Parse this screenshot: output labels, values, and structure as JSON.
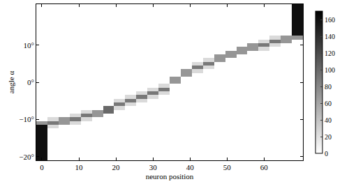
{
  "chart_data": {
    "type": "heatmap",
    "x_label": "neuron position",
    "y_label": "angle α",
    "x": [
      0,
      3,
      6,
      9,
      12,
      15,
      18,
      21,
      24,
      27,
      30,
      33,
      36,
      39,
      42,
      45,
      48,
      51,
      54,
      57,
      60,
      63,
      66,
      69
    ],
    "y": [
      -21,
      -20,
      -19,
      -18,
      -17,
      -16,
      -15,
      -14,
      -13,
      -12,
      -11,
      -10,
      -9,
      -8,
      -7,
      -6,
      -5,
      -4,
      -3,
      -2,
      -1,
      0,
      1,
      2,
      3,
      4,
      5,
      6,
      7,
      8,
      9,
      10,
      11,
      12,
      13,
      14,
      15,
      16,
      17,
      18,
      19,
      20,
      21
    ],
    "z": [
      [
        160,
        0,
        0,
        0,
        0,
        0,
        0,
        0,
        0,
        0,
        0,
        0,
        0,
        0,
        0,
        0,
        0,
        0,
        0,
        0,
        0,
        0,
        0,
        0
      ],
      [
        160,
        0,
        0,
        0,
        0,
        0,
        0,
        0,
        0,
        0,
        0,
        0,
        0,
        0,
        0,
        0,
        0,
        0,
        0,
        0,
        0,
        0,
        0,
        0
      ],
      [
        160,
        0,
        0,
        0,
        0,
        0,
        0,
        0,
        0,
        0,
        0,
        0,
        0,
        0,
        0,
        0,
        0,
        0,
        0,
        0,
        0,
        0,
        0,
        0
      ],
      [
        160,
        0,
        0,
        0,
        0,
        0,
        0,
        0,
        0,
        0,
        0,
        0,
        0,
        0,
        0,
        0,
        0,
        0,
        0,
        0,
        0,
        0,
        0,
        0
      ],
      [
        160,
        0,
        0,
        0,
        0,
        0,
        0,
        0,
        0,
        0,
        0,
        0,
        0,
        0,
        0,
        0,
        0,
        0,
        0,
        0,
        0,
        0,
        0,
        0
      ],
      [
        160,
        0,
        0,
        0,
        0,
        0,
        0,
        0,
        0,
        0,
        0,
        0,
        0,
        0,
        0,
        0,
        0,
        0,
        0,
        0,
        0,
        0,
        0,
        0
      ],
      [
        160,
        0,
        0,
        0,
        0,
        0,
        0,
        0,
        0,
        0,
        0,
        0,
        0,
        0,
        0,
        0,
        0,
        0,
        0,
        0,
        0,
        0,
        0,
        0
      ],
      [
        160,
        0,
        0,
        0,
        0,
        0,
        0,
        0,
        0,
        0,
        0,
        0,
        0,
        0,
        0,
        0,
        0,
        0,
        0,
        0,
        0,
        0,
        0,
        0
      ],
      [
        160,
        0,
        0,
        0,
        0,
        0,
        0,
        0,
        0,
        0,
        0,
        0,
        0,
        0,
        0,
        0,
        0,
        0,
        0,
        0,
        0,
        0,
        0,
        0
      ],
      [
        160,
        25,
        0,
        0,
        0,
        0,
        0,
        0,
        0,
        0,
        0,
        0,
        0,
        0,
        0,
        0,
        0,
        0,
        0,
        0,
        0,
        0,
        0,
        0
      ],
      [
        70,
        90,
        70,
        25,
        0,
        0,
        0,
        0,
        0,
        0,
        0,
        0,
        0,
        0,
        0,
        0,
        0,
        0,
        0,
        0,
        0,
        0,
        0,
        0
      ],
      [
        0,
        25,
        70,
        90,
        25,
        0,
        0,
        0,
        0,
        0,
        0,
        0,
        0,
        0,
        0,
        0,
        0,
        0,
        0,
        0,
        0,
        0,
        0,
        0
      ],
      [
        0,
        0,
        0,
        25,
        90,
        70,
        0,
        0,
        0,
        0,
        0,
        0,
        0,
        0,
        0,
        0,
        0,
        0,
        0,
        0,
        0,
        0,
        0,
        0
      ],
      [
        0,
        0,
        0,
        0,
        25,
        70,
        100,
        0,
        0,
        0,
        0,
        0,
        0,
        0,
        0,
        0,
        0,
        0,
        0,
        0,
        0,
        0,
        0,
        0
      ],
      [
        0,
        0,
        0,
        0,
        0,
        0,
        100,
        25,
        0,
        0,
        0,
        0,
        0,
        0,
        0,
        0,
        0,
        0,
        0,
        0,
        0,
        0,
        0,
        0
      ],
      [
        0,
        0,
        0,
        0,
        0,
        0,
        0,
        90,
        25,
        0,
        0,
        0,
        0,
        0,
        0,
        0,
        0,
        0,
        0,
        0,
        0,
        0,
        0,
        0
      ],
      [
        0,
        0,
        0,
        0,
        0,
        0,
        0,
        25,
        90,
        25,
        0,
        0,
        0,
        0,
        0,
        0,
        0,
        0,
        0,
        0,
        0,
        0,
        0,
        0
      ],
      [
        0,
        0,
        0,
        0,
        0,
        0,
        0,
        0,
        25,
        90,
        25,
        0,
        0,
        0,
        0,
        0,
        0,
        0,
        0,
        0,
        0,
        0,
        0,
        0
      ],
      [
        0,
        0,
        0,
        0,
        0,
        0,
        0,
        0,
        0,
        25,
        90,
        25,
        0,
        0,
        0,
        0,
        0,
        0,
        0,
        0,
        0,
        0,
        0,
        0
      ],
      [
        0,
        0,
        0,
        0,
        0,
        0,
        0,
        0,
        0,
        0,
        25,
        90,
        0,
        0,
        0,
        0,
        0,
        0,
        0,
        0,
        0,
        0,
        0,
        0
      ],
      [
        0,
        0,
        0,
        0,
        0,
        0,
        0,
        0,
        0,
        0,
        0,
        25,
        0,
        0,
        0,
        0,
        0,
        0,
        0,
        0,
        0,
        0,
        0,
        0
      ],
      [
        0,
        0,
        0,
        0,
        0,
        0,
        0,
        0,
        0,
        0,
        0,
        0,
        70,
        0,
        0,
        0,
        0,
        0,
        0,
        0,
        0,
        0,
        0,
        0
      ],
      [
        0,
        0,
        0,
        0,
        0,
        0,
        0,
        0,
        0,
        0,
        0,
        0,
        70,
        0,
        0,
        0,
        0,
        0,
        0,
        0,
        0,
        0,
        0,
        0
      ],
      [
        0,
        0,
        0,
        0,
        0,
        0,
        0,
        0,
        0,
        0,
        0,
        0,
        0,
        70,
        0,
        0,
        0,
        0,
        0,
        0,
        0,
        0,
        0,
        0
      ],
      [
        0,
        0,
        0,
        0,
        0,
        0,
        0,
        0,
        0,
        0,
        0,
        0,
        0,
        70,
        25,
        0,
        0,
        0,
        0,
        0,
        0,
        0,
        0,
        0
      ],
      [
        0,
        0,
        0,
        0,
        0,
        0,
        0,
        0,
        0,
        0,
        0,
        0,
        0,
        0,
        90,
        25,
        0,
        0,
        0,
        0,
        0,
        0,
        0,
        0
      ],
      [
        0,
        0,
        0,
        0,
        0,
        0,
        0,
        0,
        0,
        0,
        0,
        0,
        0,
        0,
        25,
        90,
        0,
        0,
        0,
        0,
        0,
        0,
        0,
        0
      ],
      [
        0,
        0,
        0,
        0,
        0,
        0,
        0,
        0,
        0,
        0,
        0,
        0,
        0,
        0,
        0,
        25,
        70,
        0,
        0,
        0,
        0,
        0,
        0,
        0
      ],
      [
        0,
        0,
        0,
        0,
        0,
        0,
        0,
        0,
        0,
        0,
        0,
        0,
        0,
        0,
        0,
        0,
        70,
        70,
        0,
        0,
        0,
        0,
        0,
        0
      ],
      [
        0,
        0,
        0,
        0,
        0,
        0,
        0,
        0,
        0,
        0,
        0,
        0,
        0,
        0,
        0,
        0,
        0,
        70,
        70,
        0,
        0,
        0,
        0,
        0
      ],
      [
        0,
        0,
        0,
        0,
        0,
        0,
        0,
        0,
        0,
        0,
        0,
        0,
        0,
        0,
        0,
        0,
        0,
        0,
        70,
        70,
        25,
        0,
        0,
        0
      ],
      [
        0,
        0,
        0,
        0,
        0,
        0,
        0,
        0,
        0,
        0,
        0,
        0,
        0,
        0,
        0,
        0,
        0,
        0,
        0,
        70,
        90,
        25,
        0,
        0
      ],
      [
        0,
        0,
        0,
        0,
        0,
        0,
        0,
        0,
        0,
        0,
        0,
        0,
        0,
        0,
        0,
        0,
        0,
        0,
        0,
        0,
        25,
        90,
        70,
        0
      ],
      [
        0,
        0,
        0,
        0,
        0,
        0,
        0,
        0,
        0,
        0,
        0,
        0,
        0,
        0,
        0,
        0,
        0,
        0,
        0,
        0,
        0,
        25,
        70,
        70
      ],
      [
        0,
        0,
        0,
        0,
        0,
        0,
        0,
        0,
        0,
        0,
        0,
        0,
        0,
        0,
        0,
        0,
        0,
        0,
        0,
        0,
        0,
        0,
        0,
        160
      ],
      [
        0,
        0,
        0,
        0,
        0,
        0,
        0,
        0,
        0,
        0,
        0,
        0,
        0,
        0,
        0,
        0,
        0,
        0,
        0,
        0,
        0,
        0,
        0,
        160
      ],
      [
        0,
        0,
        0,
        0,
        0,
        0,
        0,
        0,
        0,
        0,
        0,
        0,
        0,
        0,
        0,
        0,
        0,
        0,
        0,
        0,
        0,
        0,
        0,
        160
      ],
      [
        0,
        0,
        0,
        0,
        0,
        0,
        0,
        0,
        0,
        0,
        0,
        0,
        0,
        0,
        0,
        0,
        0,
        0,
        0,
        0,
        0,
        0,
        0,
        160
      ],
      [
        0,
        0,
        0,
        0,
        0,
        0,
        0,
        0,
        0,
        0,
        0,
        0,
        0,
        0,
        0,
        0,
        0,
        0,
        0,
        0,
        0,
        0,
        0,
        160
      ],
      [
        0,
        0,
        0,
        0,
        0,
        0,
        0,
        0,
        0,
        0,
        0,
        0,
        0,
        0,
        0,
        0,
        0,
        0,
        0,
        0,
        0,
        0,
        0,
        160
      ],
      [
        0,
        0,
        0,
        0,
        0,
        0,
        0,
        0,
        0,
        0,
        0,
        0,
        0,
        0,
        0,
        0,
        0,
        0,
        0,
        0,
        0,
        0,
        0,
        160
      ],
      [
        0,
        0,
        0,
        0,
        0,
        0,
        0,
        0,
        0,
        0,
        0,
        0,
        0,
        0,
        0,
        0,
        0,
        0,
        0,
        0,
        0,
        0,
        0,
        160
      ],
      [
        0,
        0,
        0,
        0,
        0,
        0,
        0,
        0,
        0,
        0,
        0,
        0,
        0,
        0,
        0,
        0,
        0,
        0,
        0,
        0,
        0,
        0,
        0,
        160
      ]
    ],
    "xlim": [
      -1.5,
      70.5
    ],
    "xticks": [
      0,
      10,
      20,
      30,
      40,
      50,
      60
    ],
    "ylim": [
      -21,
      21
    ],
    "yticks": [
      {
        "value": -20,
        "label": "−20°"
      },
      {
        "value": -10,
        "label": "−10°"
      },
      {
        "value": 0,
        "label": "0°"
      },
      {
        "value": 10,
        "label": "10°"
      }
    ],
    "zlim": [
      0,
      170
    ],
    "zticks": [
      0,
      20,
      40,
      60,
      80,
      100,
      120,
      140,
      160
    ],
    "grid": false
  }
}
